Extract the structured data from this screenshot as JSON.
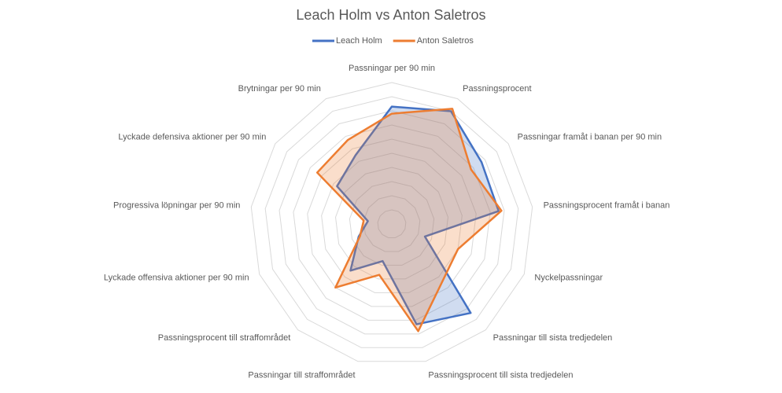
{
  "chart_data": {
    "type": "radar",
    "title": "Leach Holm vs Anton Saletros",
    "categories": [
      "Passningar per 90 min",
      "Passningsprocent",
      "Passningar framåt i banan per 90 min",
      "Passningsprocent framåt i banan",
      "Nyckelpassningar",
      "Passningar till sista tredjedelen",
      "Passningsprocent till sista tredjedelen",
      "Passningar till straffområdet",
      "Passningsprocent till straffområdet",
      "Lyckade offensiva aktioner per 90 min",
      "Progressiva löpningar per 90 min",
      "Lyckade defensiva aktioner per 90 min",
      "Brytningar per 90 min"
    ],
    "series": [
      {
        "name": "Leach Holm",
        "color": "#4472c4",
        "values": [
          83,
          90,
          77,
          76,
          25,
          84,
          73,
          27,
          44,
          25,
          17,
          47,
          55
        ]
      },
      {
        "name": "Anton Saletros",
        "color": "#ed7d31",
        "values": [
          78,
          92,
          68,
          78,
          50,
          54,
          78,
          37,
          60,
          24,
          20,
          64,
          67
        ]
      }
    ],
    "ylim": [
      0,
      100
    ],
    "yticks": [
      10,
      20,
      30,
      40,
      50,
      60,
      70,
      80,
      90,
      100
    ],
    "grid": true,
    "legend": "top"
  }
}
